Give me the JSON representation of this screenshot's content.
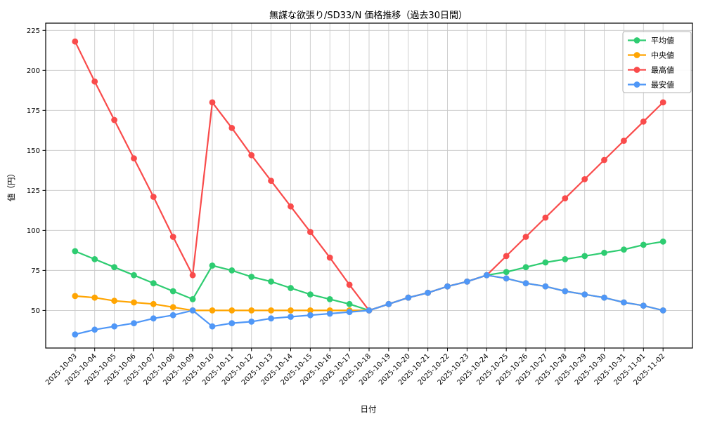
{
  "page": {
    "title": "無謀な欲張り/SD33/N 価格推移（過去30日間）"
  },
  "chart_data": {
    "type": "line",
    "title": "無謀な欲張り/SD33/N 価格推移（過去30日間）",
    "xlabel": "日付",
    "ylabel": "値（円）",
    "x": [
      "2025-10-03",
      "2025-10-04",
      "2025-10-05",
      "2025-10-06",
      "2025-10-07",
      "2025-10-08",
      "2025-10-09",
      "2025-10-10",
      "2025-10-11",
      "2025-10-12",
      "2025-10-13",
      "2025-10-14",
      "2025-10-15",
      "2025-10-16",
      "2025-10-17",
      "2025-10-18",
      "2025-10-19",
      "2025-10-20",
      "2025-10-21",
      "2025-10-22",
      "2025-10-23",
      "2025-10-24",
      "2025-10-25",
      "2025-10-26",
      "2025-10-27",
      "2025-10-28",
      "2025-10-29",
      "2025-10-30",
      "2025-10-31",
      "2025-11-01",
      "2025-11-02"
    ],
    "series": [
      {
        "name": "平均値",
        "color": "#2ecc71",
        "values": [
          87,
          82,
          77,
          72,
          67,
          62,
          57,
          78,
          75,
          71,
          68,
          64,
          60,
          57,
          54,
          50,
          54,
          58,
          61,
          65,
          68,
          72,
          74,
          77,
          80,
          82,
          84,
          86,
          88,
          91,
          93
        ]
      },
      {
        "name": "中央値",
        "color": "#ffa502",
        "values": [
          59,
          58,
          56,
          55,
          54,
          52,
          50,
          50,
          50,
          50,
          50,
          50,
          50,
          50,
          50,
          50,
          54,
          58,
          61,
          65,
          68,
          72,
          70,
          67,
          65,
          62,
          60,
          58,
          55,
          53,
          50
        ]
      },
      {
        "name": "最高値",
        "color": "#f94b4b",
        "values": [
          218,
          193,
          169,
          145,
          121,
          96,
          72,
          180,
          164,
          147,
          131,
          115,
          99,
          83,
          66,
          50,
          54,
          58,
          61,
          65,
          68,
          72,
          84,
          96,
          108,
          120,
          132,
          144,
          156,
          168,
          180
        ]
      },
      {
        "name": "最安値",
        "color": "#4f97f7",
        "values": [
          35,
          38,
          40,
          42,
          45,
          47,
          50,
          40,
          42,
          43,
          45,
          46,
          47,
          48,
          49,
          50,
          54,
          58,
          61,
          65,
          68,
          72,
          70,
          67,
          65,
          62,
          60,
          58,
          55,
          53,
          50
        ]
      }
    ],
    "yticks": [
      50,
      75,
      100,
      125,
      150,
      175,
      200,
      225
    ],
    "ylim": [
      26.5,
      229.5
    ],
    "grid": true,
    "grid_color": "#c9c9c9",
    "background": "#ffffff",
    "legend_position": "upper right",
    "x_tick_rotation": 45
  }
}
